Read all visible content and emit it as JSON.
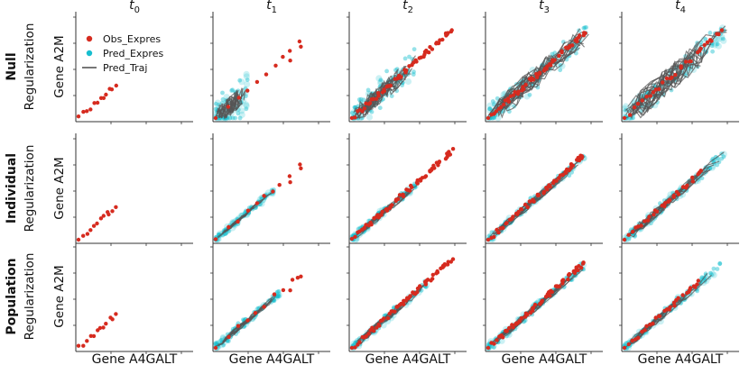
{
  "chart_data": {
    "type": "scatter",
    "layout": "3x5 small multiples",
    "columns": [
      "t",
      "t",
      "t",
      "t",
      "t"
    ],
    "column_subscripts": [
      "0",
      "1",
      "2",
      "3",
      "4"
    ],
    "row_labels": [
      {
        "bold": "Null",
        "normal": "Regularization"
      },
      {
        "bold": "Individual",
        "normal": "Regularization"
      },
      {
        "bold": "Population",
        "normal": "Regularization"
      }
    ],
    "xlabel": "Gene A4GALT",
    "ylabel": "Gene A2M",
    "legend": {
      "placement": "top-left of first panel",
      "entries": [
        {
          "label": "Obs_Expres",
          "color": "#d62b1f",
          "kind": "point"
        },
        {
          "label": "Pred_Expres",
          "color": "#17becf",
          "kind": "point"
        },
        {
          "label": "Pred_Traj",
          "color": "#555555",
          "kind": "line"
        }
      ]
    },
    "axes": {
      "xlim": [
        0,
        1
      ],
      "ylim": [
        0,
        1
      ],
      "tick_labels": "none"
    },
    "series_description": {
      "Obs_Expres": "observed expression, roughly linear A2M vs A4GALT, extent grows with time",
      "Pred_Expres": "predicted expression cloud (absent at t0)",
      "Pred_Traj": "predicted trajectories (absent at t0)"
    },
    "panels": [
      {
        "row": 0,
        "col": 0,
        "observed": {
          "x_max": 0.36,
          "n": 12
        },
        "predicted": {
          "present": false
        }
      },
      {
        "row": 0,
        "col": 1,
        "observed": {
          "x_max": 0.8,
          "n": 10,
          "outliers": [
            [
              0.7,
              0.58
            ],
            [
              0.8,
              0.72
            ]
          ]
        },
        "predicted": {
          "present": true,
          "x_max": 0.3,
          "spread": 0.18,
          "traj_spread": 0.1
        }
      },
      {
        "row": 0,
        "col": 2,
        "observed": {
          "x_max": 0.98,
          "n": 60
        },
        "predicted": {
          "present": true,
          "x_max": 0.6,
          "spread": 0.14,
          "traj_spread": 0.1
        }
      },
      {
        "row": 0,
        "col": 3,
        "observed": {
          "x_max": 0.95,
          "n": 55
        },
        "predicted": {
          "present": true,
          "x_max": 0.95,
          "spread": 0.12,
          "traj_spread": 0.12
        }
      },
      {
        "row": 0,
        "col": 4,
        "observed": {
          "x_max": 0.95,
          "n": 30
        },
        "predicted": {
          "present": true,
          "x_max": 0.95,
          "spread": 0.12,
          "traj_spread": 0.14
        }
      },
      {
        "row": 1,
        "col": 0,
        "observed": {
          "x_max": 0.36,
          "n": 12
        },
        "predicted": {
          "present": false
        }
      },
      {
        "row": 1,
        "col": 1,
        "observed": {
          "x_max": 0.8,
          "n": 10,
          "outliers": [
            [
              0.7,
              0.58
            ],
            [
              0.8,
              0.72
            ]
          ]
        },
        "predicted": {
          "present": true,
          "x_max": 0.55,
          "spread": 0.03,
          "traj_spread": 0.02
        }
      },
      {
        "row": 1,
        "col": 2,
        "observed": {
          "x_max": 0.98,
          "n": 60
        },
        "predicted": {
          "present": true,
          "x_max": 0.65,
          "spread": 0.04,
          "traj_spread": 0.04
        }
      },
      {
        "row": 1,
        "col": 3,
        "observed": {
          "x_max": 0.95,
          "n": 55
        },
        "predicted": {
          "present": true,
          "x_max": 0.9,
          "spread": 0.04,
          "traj_spread": 0.04
        }
      },
      {
        "row": 1,
        "col": 4,
        "observed": {
          "x_max": 0.75,
          "n": 30
        },
        "predicted": {
          "present": true,
          "x_max": 0.95,
          "spread": 0.05,
          "traj_spread": 0.05
        }
      },
      {
        "row": 2,
        "col": 0,
        "observed": {
          "x_max": 0.36,
          "n": 12
        },
        "predicted": {
          "present": false
        }
      },
      {
        "row": 2,
        "col": 1,
        "observed": {
          "x_max": 0.8,
          "n": 10,
          "outliers": [
            [
              0.7,
              0.58
            ],
            [
              0.8,
              0.72
            ]
          ]
        },
        "predicted": {
          "present": true,
          "x_max": 0.6,
          "spread": 0.04,
          "traj_spread": 0.03
        }
      },
      {
        "row": 2,
        "col": 2,
        "observed": {
          "x_max": 0.98,
          "n": 60
        },
        "predicted": {
          "present": true,
          "x_max": 0.7,
          "spread": 0.04,
          "traj_spread": 0.04
        }
      },
      {
        "row": 2,
        "col": 3,
        "observed": {
          "x_max": 0.95,
          "n": 55
        },
        "predicted": {
          "present": true,
          "x_max": 0.9,
          "spread": 0.04,
          "traj_spread": 0.04
        }
      },
      {
        "row": 2,
        "col": 4,
        "observed": {
          "x_max": 0.75,
          "n": 30
        },
        "predicted": {
          "present": true,
          "x_max": 0.9,
          "spread": 0.04,
          "traj_spread": 0.04
        }
      }
    ]
  }
}
